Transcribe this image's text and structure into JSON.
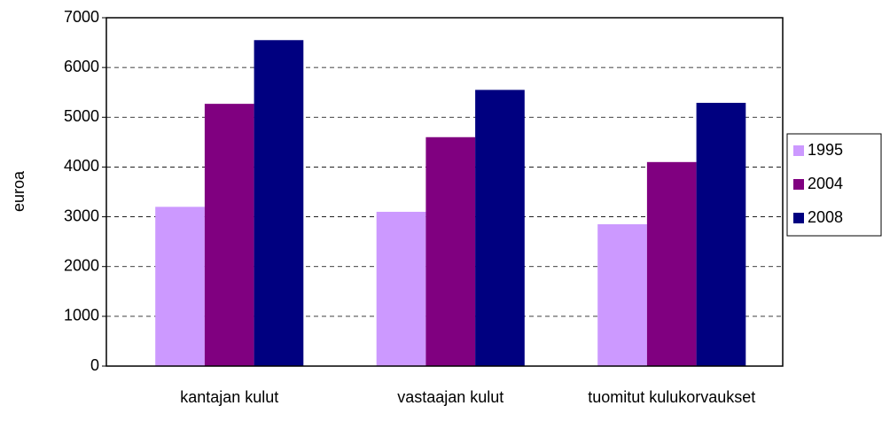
{
  "chart_data": {
    "type": "bar",
    "y_label": "euroa",
    "categories": [
      "kantajan kulut",
      "vastaajan kulut",
      "tuomitut kulukorvaukset"
    ],
    "series": [
      {
        "name": "1995",
        "color": "#cc99ff",
        "values": [
          3200,
          3100,
          2850
        ]
      },
      {
        "name": "2004",
        "color": "#800080",
        "values": [
          5270,
          4600,
          4100
        ]
      },
      {
        "name": "2008",
        "color": "#000080",
        "values": [
          6550,
          5550,
          5290
        ]
      }
    ],
    "ylim": [
      0,
      7000
    ],
    "yticks": [
      0,
      1000,
      2000,
      3000,
      4000,
      5000,
      6000,
      7000
    ],
    "grid": true,
    "legend": "right"
  }
}
